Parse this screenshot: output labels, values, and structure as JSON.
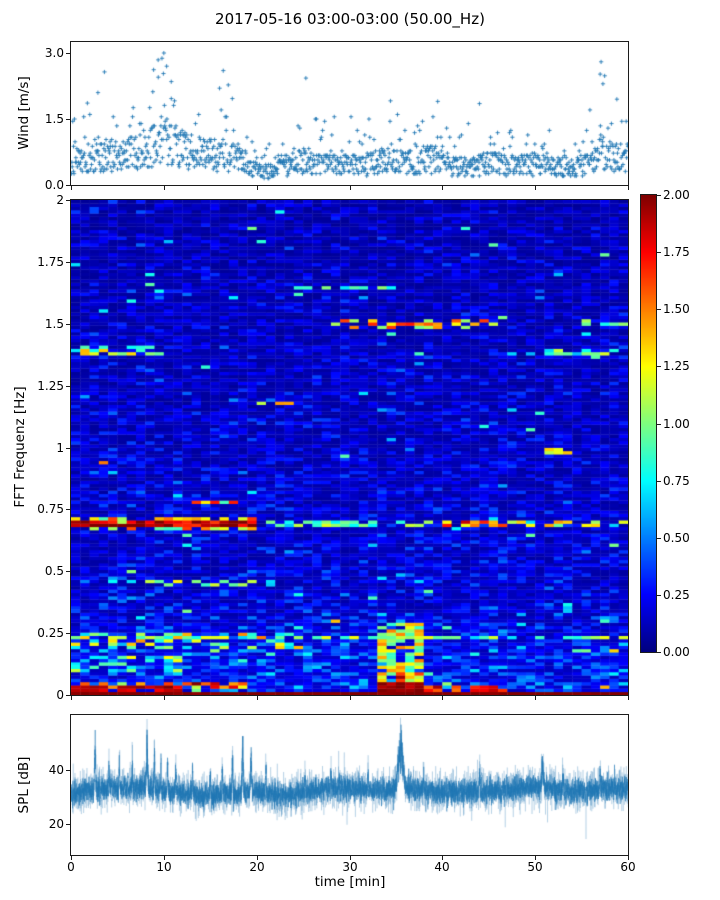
{
  "title": "2017-05-16 03:00-03:00 (50.00_Hz)",
  "accent_color": "#1f77b4",
  "spine_color": "#1c1c1c",
  "seed": 987654321,
  "xaxis": {
    "label": "time [min]",
    "lim": [
      0,
      60
    ],
    "ticks": [
      "0",
      "10",
      "20",
      "30",
      "40",
      "50",
      "60"
    ]
  },
  "chart_data": [
    {
      "id": "wind",
      "type": "scatter",
      "ylabel": "Wind [m/s]",
      "yticks": [
        "0.0",
        "1.5",
        "3.0"
      ],
      "ylim": [
        0,
        3.25
      ],
      "xlim": [
        0,
        60
      ],
      "marker": "plus",
      "marker_color": "#1f77b4",
      "n_points": 1150,
      "quantize_step": 0.0517,
      "envelope": [
        [
          0,
          0.75,
          1.9
        ],
        [
          2,
          0.8,
          2.1
        ],
        [
          3.5,
          0.9,
          2.6
        ],
        [
          5,
          0.85,
          1.6
        ],
        [
          7,
          0.95,
          2.0
        ],
        [
          9,
          1.2,
          2.75
        ],
        [
          10,
          1.3,
          3.0
        ],
        [
          11,
          1.1,
          2.5
        ],
        [
          13,
          0.95,
          1.9
        ],
        [
          15,
          0.9,
          2.2
        ],
        [
          16.5,
          0.9,
          2.6
        ],
        [
          18,
          0.75,
          1.6
        ],
        [
          20,
          0.45,
          1.1
        ],
        [
          21.5,
          0.35,
          0.9
        ],
        [
          23,
          0.55,
          1.5
        ],
        [
          25,
          0.7,
          2.45
        ],
        [
          26.5,
          0.65,
          1.6
        ],
        [
          28,
          0.7,
          1.6
        ],
        [
          30,
          0.55,
          1.8
        ],
        [
          32,
          0.6,
          1.6
        ],
        [
          33.5,
          0.7,
          2.0
        ],
        [
          35,
          0.75,
          1.9
        ],
        [
          37,
          0.65,
          1.5
        ],
        [
          39,
          0.8,
          1.9
        ],
        [
          41,
          0.55,
          1.3
        ],
        [
          43,
          0.5,
          1.5
        ],
        [
          45,
          0.65,
          1.8
        ],
        [
          47,
          0.55,
          1.3
        ],
        [
          49,
          0.6,
          1.4
        ],
        [
          51,
          0.65,
          1.5
        ],
        [
          53,
          0.5,
          1.2
        ],
        [
          55,
          0.55,
          1.4
        ],
        [
          56.5,
          0.8,
          2.2
        ],
        [
          57.2,
          1.0,
          2.85
        ],
        [
          58,
          0.85,
          2.0
        ],
        [
          59,
          0.8,
          1.9
        ],
        [
          60,
          0.85,
          1.95
        ]
      ],
      "outliers": [
        [
          10,
          3.0
        ],
        [
          9.8,
          2.88
        ],
        [
          10.3,
          2.7
        ],
        [
          8.9,
          2.62
        ],
        [
          9.4,
          2.45
        ],
        [
          10.8,
          2.35
        ],
        [
          3.6,
          2.57
        ],
        [
          2.9,
          2.1
        ],
        [
          16.4,
          2.6
        ],
        [
          16.0,
          2.2
        ],
        [
          25.3,
          2.43
        ],
        [
          39.5,
          1.9
        ],
        [
          44,
          1.85
        ],
        [
          57,
          2.52
        ],
        [
          57.1,
          2.8
        ],
        [
          57.3,
          2.3
        ],
        [
          58.8,
          1.95
        ]
      ]
    },
    {
      "id": "spectrogram",
      "type": "heatmap",
      "ylabel": "FFT Frequenz [Hz]",
      "yticks": [
        "0",
        "0.25",
        "0.5",
        "0.75",
        "1",
        "1.25",
        "1.5",
        "1.75",
        "2"
      ],
      "ylim": [
        0,
        2
      ],
      "xlim": [
        0,
        60
      ],
      "colormap": "jet",
      "clim": [
        0,
        2
      ],
      "grid_cols": 60,
      "grid_rows": 150,
      "background": {
        "base": 0.3,
        "low_freq_boost": 0.5,
        "low_freq_cutoff": 0.4,
        "freq_slope": -0.06
      },
      "bands": [
        {
          "f0": 0.0,
          "f1": 0.018,
          "t0": 0,
          "t1": 60,
          "v": 2.0,
          "j": 0.05,
          "g": 0
        },
        {
          "f0": 0.018,
          "f1": 0.038,
          "t0": 0,
          "t1": 12,
          "v": 1.9,
          "j": 0.15,
          "g": 0.15
        },
        {
          "f0": 0.018,
          "f1": 0.05,
          "t0": 33,
          "t1": 38.5,
          "v": 1.95,
          "j": 0.1,
          "g": 0.1
        },
        {
          "f0": 0.018,
          "f1": 0.035,
          "t0": 38.5,
          "t1": 47,
          "v": 1.7,
          "j": 0.25,
          "g": 0.25
        },
        {
          "f0": 0.022,
          "f1": 0.06,
          "t0": 0,
          "t1": 20,
          "v": 1.5,
          "j": 0.5,
          "g": 0.3
        },
        {
          "f0": 0.05,
          "f1": 0.1,
          "t0": 33.5,
          "t1": 38,
          "v": 1.5,
          "j": 0.45,
          "g": 0.25
        },
        {
          "f0": 0.0,
          "f1": 0.3,
          "t0": 33.5,
          "t1": 38,
          "v": 1.15,
          "j": 0.35,
          "g": 0.3
        },
        {
          "f0": 0.19,
          "f1": 0.26,
          "t0": 0,
          "t1": 25,
          "v": 1.1,
          "j": 0.5,
          "g": 0.5
        },
        {
          "f0": 0.225,
          "f1": 0.245,
          "t0": 0,
          "t1": 60,
          "v": 0.95,
          "j": 0.3,
          "g": 0.4
        },
        {
          "f0": 0.1,
          "f1": 0.16,
          "t0": 0,
          "t1": 12,
          "v": 0.9,
          "j": 0.4,
          "g": 0.55
        },
        {
          "f0": 0.68,
          "f1": 0.71,
          "t0": 0,
          "t1": 20,
          "v": 1.9,
          "j": 0.25,
          "g": 0.05
        },
        {
          "f0": 0.665,
          "f1": 0.725,
          "t0": 0,
          "t1": 20,
          "v": 1.25,
          "j": 0.4,
          "g": 0.35
        },
        {
          "f0": 0.68,
          "f1": 0.705,
          "t0": 20,
          "t1": 40,
          "v": 0.9,
          "j": 0.3,
          "g": 0.5
        },
        {
          "f0": 0.68,
          "f1": 0.705,
          "t0": 40,
          "t1": 47,
          "v": 1.55,
          "j": 0.35,
          "g": 0.2
        },
        {
          "f0": 0.68,
          "f1": 0.705,
          "t0": 47,
          "t1": 60,
          "v": 1.05,
          "j": 0.4,
          "g": 0.4
        },
        {
          "f0": 0.775,
          "f1": 0.792,
          "t0": 12,
          "t1": 18,
          "v": 1.5,
          "j": 0.3,
          "g": 0.2
        },
        {
          "f0": 0.44,
          "f1": 0.47,
          "t0": 8,
          "t1": 22,
          "v": 1.0,
          "j": 0.4,
          "g": 0.55
        },
        {
          "f0": 1.17,
          "f1": 1.19,
          "t0": 20.5,
          "t1": 24,
          "v": 1.3,
          "j": 0.2,
          "g": 0.25
        },
        {
          "f0": 0.98,
          "f1": 0.995,
          "t0": 51,
          "t1": 54,
          "v": 1.25,
          "j": 0.2,
          "g": 0.2
        },
        {
          "f0": 0.93,
          "f1": 0.945,
          "t0": 3.3,
          "t1": 4.3,
          "v": 1.45,
          "j": 0.2,
          "g": 0
        },
        {
          "f0": 1.375,
          "f1": 1.41,
          "t0": 0,
          "t1": 10,
          "v": 1.1,
          "j": 0.4,
          "g": 0.4
        },
        {
          "f0": 1.38,
          "f1": 1.405,
          "t0": 47,
          "t1": 60,
          "v": 0.9,
          "j": 0.3,
          "g": 0.5
        },
        {
          "f0": 1.48,
          "f1": 1.52,
          "t0": 28,
          "t1": 46,
          "v": 1.3,
          "j": 0.45,
          "g": 0.45
        },
        {
          "f0": 1.49,
          "f1": 1.51,
          "t0": 55,
          "t1": 60,
          "v": 1.0,
          "j": 0.3,
          "g": 0.35
        },
        {
          "f0": 1.64,
          "f1": 1.66,
          "t0": 24,
          "t1": 36,
          "v": 0.85,
          "j": 0.25,
          "g": 0.45
        }
      ],
      "colorbar": {
        "lim": [
          0,
          2
        ],
        "ticks": [
          "0.00",
          "0.25",
          "0.50",
          "0.75",
          "1.00",
          "1.25",
          "1.50",
          "1.75",
          "2.00"
        ]
      }
    },
    {
      "id": "spl",
      "type": "line",
      "ylabel": "SPL [dB]",
      "yticks": [
        "20",
        "40"
      ],
      "ylim": [
        9,
        60
      ],
      "xlim": [
        0,
        60
      ],
      "line_color": "#1f77b4",
      "n_points": 5200,
      "noise_amp": 5.2,
      "baseline": [
        [
          0,
          31.5
        ],
        [
          3,
          33
        ],
        [
          8,
          33.5
        ],
        [
          12,
          31.5
        ],
        [
          14,
          30.5
        ],
        [
          20,
          32
        ],
        [
          23,
          30.5
        ],
        [
          27,
          33
        ],
        [
          30,
          33.5
        ],
        [
          33,
          32.5
        ],
        [
          36,
          33
        ],
        [
          40,
          32
        ],
        [
          45,
          32.5
        ],
        [
          50,
          33.5
        ],
        [
          52,
          33
        ],
        [
          55,
          32
        ],
        [
          58,
          33
        ],
        [
          60,
          33
        ]
      ],
      "spikes": [
        [
          2.6,
          20,
          0.08
        ],
        [
          4.1,
          13,
          0.05
        ],
        [
          5.2,
          12,
          0.05
        ],
        [
          6.6,
          11,
          0.05
        ],
        [
          8.2,
          21,
          0.09
        ],
        [
          9.0,
          17,
          0.06
        ],
        [
          9.7,
          15,
          0.05
        ],
        [
          10.4,
          14,
          0.05
        ],
        [
          11.3,
          14,
          0.05
        ],
        [
          13.1,
          12,
          0.05
        ],
        [
          15.0,
          14,
          0.06
        ],
        [
          16.3,
          13,
          0.05
        ],
        [
          17.4,
          17,
          0.06
        ],
        [
          18.5,
          23,
          0.08
        ],
        [
          19.4,
          16,
          0.1
        ],
        [
          21.0,
          12,
          0.05
        ],
        [
          25.2,
          10,
          0.05
        ],
        [
          28.0,
          9,
          0.05
        ],
        [
          32.0,
          10,
          0.05
        ],
        [
          35.5,
          22,
          0.35
        ],
        [
          38.0,
          8,
          0.05
        ],
        [
          44.0,
          8,
          0.05
        ],
        [
          50.8,
          11,
          0.12
        ],
        [
          53.0,
          8,
          0.05
        ],
        [
          57.0,
          9,
          0.06
        ]
      ]
    }
  ]
}
